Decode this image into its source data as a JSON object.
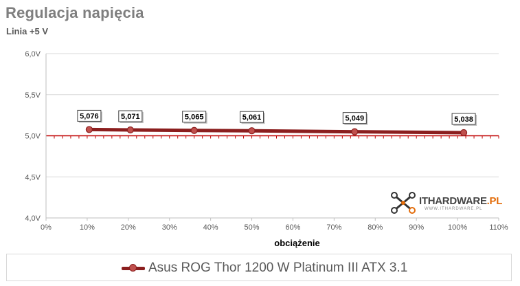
{
  "title": "Regulacja napięcia",
  "subtitle": "Linia +5 V",
  "chart_data": {
    "type": "line",
    "title": "Regulacja napięcia",
    "subtitle": "Linia +5 V",
    "xlabel": "obciążenie",
    "ylabel": "",
    "x_ticks": [
      "0%",
      "10%",
      "20%",
      "30%",
      "40%",
      "50%",
      "60%",
      "70%",
      "80%",
      "90%",
      "100%",
      "110%"
    ],
    "y_ticks": [
      "4,0V",
      "4,5V",
      "5,0V",
      "5,5V",
      "6,0V"
    ],
    "xlim": [
      0,
      110
    ],
    "ylim": [
      4.0,
      6.0
    ],
    "reference_line": 5.0,
    "grid": "horizontal",
    "legend_position": "bottom",
    "series": [
      {
        "name": "Asus ROG Thor 1200 W Platinum III ATX 3.1",
        "color": "#8b1e1e",
        "marker_color": "#c0504d",
        "x": [
          10.5,
          20.5,
          36,
          50,
          75,
          101.5
        ],
        "y": [
          5.076,
          5.071,
          5.065,
          5.061,
          5.049,
          5.038
        ],
        "labels": [
          "5,076",
          "5,071",
          "5,065",
          "5,061",
          "5,049",
          "5,038"
        ]
      }
    ]
  },
  "legend": {
    "label": "Asus ROG Thor 1200 W Platinum III ATX 3.1"
  },
  "logo": {
    "main": "ITHARDWARE",
    "accent": ".PL",
    "sub": "WWW.ITHARDWARE.PL"
  }
}
